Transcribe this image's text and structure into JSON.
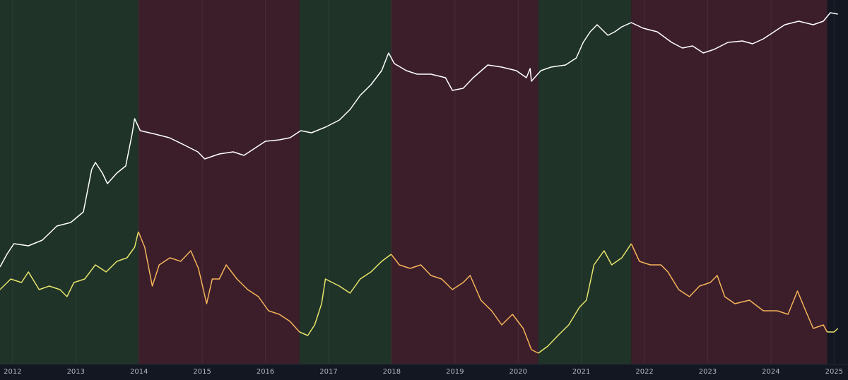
{
  "chart_data": {
    "type": "line",
    "xlim": [
      2011.8,
      2025.22
    ],
    "xticks": [
      2012,
      2013,
      2014,
      2015,
      2016,
      2017,
      2018,
      2019,
      2020,
      2021,
      2022,
      2023,
      2024,
      2025
    ],
    "ylim": [
      0,
      515
    ],
    "grid": true,
    "regions": [
      {
        "start": 2011.8,
        "end": 2013.99,
        "color": "#1f3329"
      },
      {
        "start": 2013.99,
        "end": 2016.54,
        "color": "#3c1e2b"
      },
      {
        "start": 2016.54,
        "end": 2017.99,
        "color": "#1f3329"
      },
      {
        "start": 2017.99,
        "end": 2020.32,
        "color": "#3c1e2b"
      },
      {
        "start": 2020.32,
        "end": 2021.79,
        "color": "#1f3329"
      },
      {
        "start": 2021.79,
        "end": 2024.89,
        "color": "#3c1e2b"
      }
    ],
    "series": [
      {
        "color": "#ffffff",
        "x": [
          2011.8,
          2011.91,
          2012.02,
          2012.25,
          2012.47,
          2012.7,
          2012.92,
          2013.12,
          2013.25,
          2013.31,
          2013.42,
          2013.5,
          2013.65,
          2013.79,
          2013.89,
          2013.93,
          2014.02,
          2014.26,
          2014.48,
          2014.71,
          2014.93,
          2015.04,
          2015.27,
          2015.49,
          2015.66,
          2015.83,
          2016.0,
          2016.22,
          2016.39,
          2016.56,
          2016.73,
          2016.95,
          2017.17,
          2017.34,
          2017.5,
          2017.67,
          2017.84,
          2017.95,
          2018.04,
          2018.23,
          2018.4,
          2018.62,
          2018.85,
          2018.96,
          2019.13,
          2019.29,
          2019.52,
          2019.74,
          2019.97,
          2020.13,
          2020.19,
          2020.21,
          2020.36,
          2020.52,
          2020.75,
          2020.92,
          2021.03,
          2021.14,
          2021.25,
          2021.42,
          2021.53,
          2021.64,
          2021.79,
          2021.98,
          2022.2,
          2022.43,
          2022.6,
          2022.76,
          2022.93,
          2023.1,
          2023.32,
          2023.55,
          2023.71,
          2023.88,
          2024.05,
          2024.22,
          2024.44,
          2024.67,
          2024.83,
          2024.94,
          2025.06
        ],
        "values": [
          137,
          155,
          170,
          167,
          175,
          195,
          200,
          215,
          275,
          285,
          270,
          255,
          270,
          280,
          325,
          347,
          330,
          325,
          320,
          310,
          300,
          290,
          297,
          300,
          295,
          305,
          315,
          317,
          320,
          330,
          327,
          335,
          345,
          360,
          380,
          395,
          415,
          440,
          425,
          415,
          410,
          410,
          405,
          387,
          390,
          405,
          423,
          420,
          415,
          405,
          418,
          400,
          415,
          420,
          423,
          433,
          455,
          470,
          480,
          465,
          470,
          477,
          483,
          475,
          470,
          455,
          447,
          450,
          440,
          445,
          455,
          457,
          453,
          460,
          470,
          480,
          485,
          480,
          485,
          497,
          495
        ]
      },
      {
        "color": "#e8e46a",
        "x": [
          2011.8,
          2011.97,
          2012.14,
          2012.25,
          2012.42,
          2012.58,
          2012.75,
          2012.86,
          2012.97,
          2013.14,
          2013.31,
          2013.48,
          2013.65,
          2013.81,
          2013.93,
          2013.99
        ],
        "values": [
          105,
          120,
          115,
          130,
          105,
          110,
          105,
          95,
          115,
          120,
          140,
          130,
          145,
          150,
          165,
          187
        ]
      },
      {
        "color": "#f5b458",
        "x": [
          2013.99,
          2014.09,
          2014.21,
          2014.32,
          2014.49,
          2014.66,
          2014.82,
          2014.94,
          2015.07,
          2015.16,
          2015.27,
          2015.38,
          2015.55,
          2015.72,
          2015.89,
          2016.05,
          2016.22,
          2016.39,
          2016.54
        ],
        "values": [
          187,
          165,
          110,
          140,
          150,
          145,
          160,
          135,
          85,
          120,
          120,
          140,
          120,
          105,
          95,
          75,
          70,
          60,
          45
        ]
      },
      {
        "color": "#e8e46a",
        "x": [
          2016.54,
          2016.67,
          2016.78,
          2016.89,
          2016.95,
          2017.06,
          2017.17,
          2017.34,
          2017.5,
          2017.67,
          2017.84,
          2017.99
        ],
        "values": [
          45,
          40,
          55,
          85,
          120,
          115,
          110,
          100,
          120,
          130,
          145,
          155
        ]
      },
      {
        "color": "#f5b458",
        "x": [
          2017.99,
          2018.12,
          2018.29,
          2018.46,
          2018.62,
          2018.79,
          2018.96,
          2019.13,
          2019.24,
          2019.41,
          2019.58,
          2019.74,
          2019.91,
          2020.08,
          2020.21,
          2020.32
        ],
        "values": [
          155,
          140,
          135,
          140,
          125,
          120,
          105,
          115,
          125,
          90,
          75,
          55,
          70,
          50,
          20,
          15
        ]
      },
      {
        "color": "#e8e46a",
        "x": [
          2020.32,
          2020.47,
          2020.63,
          2020.8,
          2020.97,
          2021.08,
          2021.2,
          2021.36,
          2021.48,
          2021.64,
          2021.79
        ],
        "values": [
          15,
          25,
          40,
          55,
          80,
          90,
          140,
          160,
          140,
          150,
          170
        ]
      },
      {
        "color": "#f5b458",
        "x": [
          2021.79,
          2021.92,
          2022.09,
          2022.26,
          2022.37,
          2022.54,
          2022.71,
          2022.87,
          2023.04,
          2023.15,
          2023.27,
          2023.43,
          2023.66,
          2023.88,
          2024.1,
          2024.27,
          2024.42,
          2024.55,
          2024.67,
          2024.83,
          2024.89
        ],
        "values": [
          170,
          145,
          140,
          140,
          130,
          105,
          95,
          110,
          115,
          125,
          95,
          85,
          90,
          75,
          75,
          70,
          103,
          75,
          50,
          55,
          45
        ]
      },
      {
        "color": "#e8e46a",
        "x": [
          2024.89,
          2025.0,
          2025.06
        ],
        "values": [
          45,
          45,
          50
        ]
      }
    ]
  }
}
